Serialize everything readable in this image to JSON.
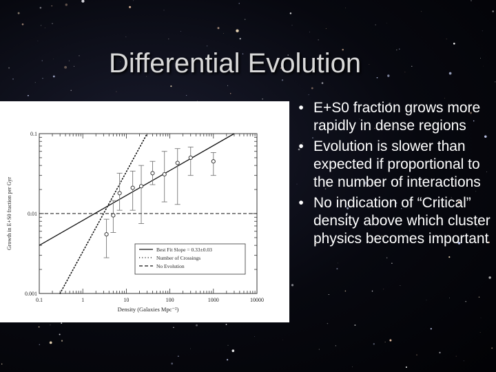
{
  "slide": {
    "title": "Differential Evolution",
    "bullets": [
      "E+S0 fraction  grows more rapidly in dense regions",
      "Evolution is slower than expected if proportional to the number of interactions",
      "No indication of “Critical” density above which cluster physics becomes important"
    ],
    "bullet_glyph": "•"
  },
  "chart_data": {
    "type": "scatter",
    "xscale": "log",
    "yscale": "log",
    "xlim": [
      0.1,
      10000
    ],
    "ylim": [
      0.001,
      0.1
    ],
    "xlabel": "Density (Galaxies Mpc⁻²)",
    "ylabel": "Growth in E+S0 fraction per Gyr",
    "x_ticks": [
      {
        "value": 0.1,
        "label": "0.1"
      },
      {
        "value": 1,
        "label": "1"
      },
      {
        "value": 10,
        "label": "10"
      },
      {
        "value": 100,
        "label": "100"
      },
      {
        "value": 1000,
        "label": "1000"
      },
      {
        "value": 10000,
        "label": "10000"
      }
    ],
    "y_ticks": [
      {
        "value": 0.001,
        "label": "0.001"
      },
      {
        "value": 0.01,
        "label": "0.01"
      },
      {
        "value": 0.1,
        "label": "0.1"
      }
    ],
    "points": [
      {
        "x": 3.5,
        "y": 0.0055,
        "ylo": 0.0028,
        "yhi": 0.0085
      },
      {
        "x": 5,
        "y": 0.0095,
        "ylo": 0.0058,
        "yhi": 0.0145
      },
      {
        "x": 7,
        "y": 0.018,
        "ylo": 0.011,
        "yhi": 0.032
      },
      {
        "x": 14,
        "y": 0.021,
        "ylo": 0.011,
        "yhi": 0.034
      },
      {
        "x": 22,
        "y": 0.022,
        "ylo": 0.0075,
        "yhi": 0.04
      },
      {
        "x": 40,
        "y": 0.032,
        "ylo": 0.023,
        "yhi": 0.045
      },
      {
        "x": 75,
        "y": 0.031,
        "ylo": 0.014,
        "yhi": 0.06
      },
      {
        "x": 150,
        "y": 0.043,
        "ylo": 0.013,
        "yhi": 0.065
      },
      {
        "x": 300,
        "y": 0.05,
        "ylo": 0.03,
        "yhi": 0.068
      },
      {
        "x": 1000,
        "y": 0.045,
        "ylo": 0.03,
        "yhi": 0.058
      }
    ],
    "best_fit": {
      "label": "Best Fit Slope = 0.33±0.03",
      "x": [
        0.1,
        3000
      ],
      "y": [
        0.004,
        0.1
      ],
      "style": "solid"
    },
    "crossings": {
      "label": "Number of Crossings",
      "x": [
        0.3,
        30
      ],
      "y": [
        0.001,
        0.1
      ],
      "style": "dotted"
    },
    "no_evolution": {
      "label": "No Evolution",
      "x": [
        0.1,
        10000
      ],
      "y": [
        0.01,
        0.01
      ],
      "style": "dashed"
    },
    "legend": "bottom-right"
  }
}
